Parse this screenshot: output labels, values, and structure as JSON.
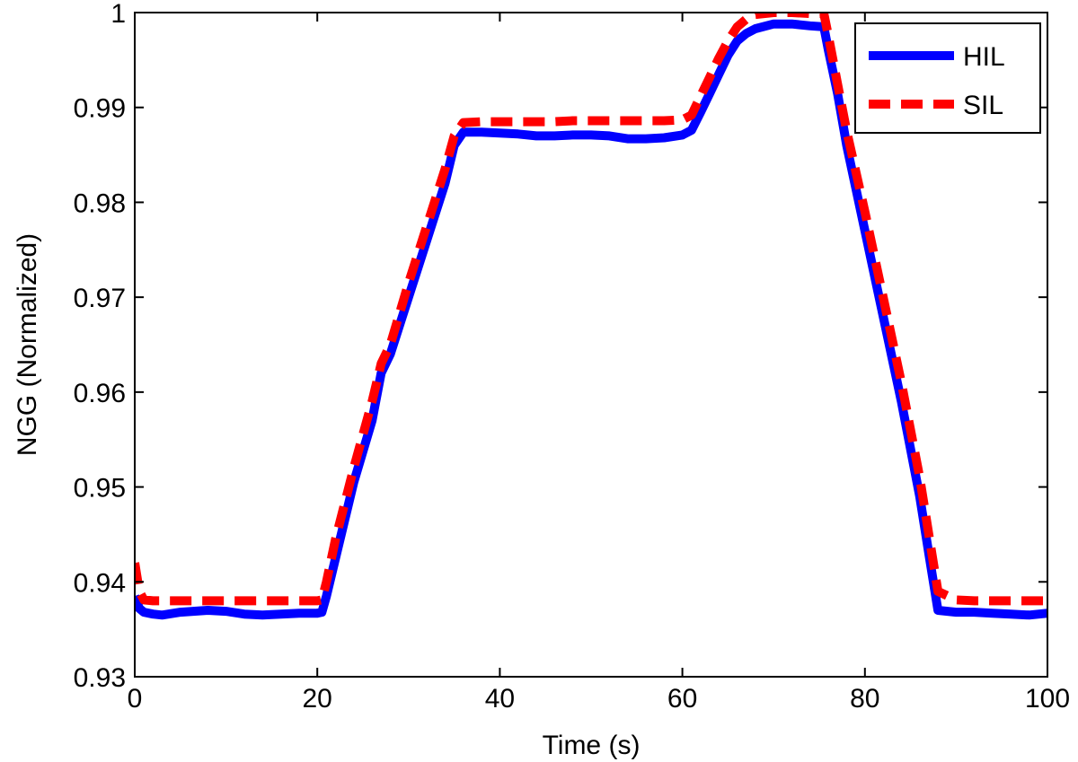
{
  "chart_data": {
    "type": "line",
    "title": "",
    "xlabel": "Time (s)",
    "ylabel": "NGG (Normalized)",
    "xlim": [
      0,
      100
    ],
    "ylim": [
      0.93,
      1.0
    ],
    "xticks": [
      0,
      20,
      40,
      60,
      80,
      100
    ],
    "xtick_labels": [
      "0",
      "20",
      "40",
      "60",
      "80",
      "100"
    ],
    "yticks": [
      0.93,
      0.94,
      0.95,
      0.96,
      0.97,
      0.98,
      0.99,
      1.0
    ],
    "ytick_labels": [
      "0.93",
      "0.94",
      "0.95",
      "0.96",
      "0.97",
      "0.98",
      "0.99",
      "1"
    ],
    "grid": false,
    "legend_position": "top-right",
    "series": [
      {
        "name": "HIL",
        "color": "#0000ff",
        "style": "solid",
        "x": [
          0,
          0.5,
          1,
          2,
          3,
          5,
          8,
          10,
          12,
          14,
          16,
          18,
          20,
          20.5,
          21,
          22,
          24,
          26,
          27,
          28,
          30,
          32,
          34,
          35,
          36,
          38,
          40,
          42,
          44,
          46,
          48,
          50,
          52,
          54,
          56,
          58,
          60,
          61,
          62,
          63,
          64,
          65,
          66,
          67,
          68,
          70,
          72,
          74,
          75.5,
          76,
          77,
          78,
          80,
          82,
          84,
          86,
          87,
          88,
          90,
          92,
          94,
          96,
          98,
          100
        ],
        "y": [
          0.9385,
          0.9372,
          0.9368,
          0.9366,
          0.9365,
          0.9368,
          0.937,
          0.9369,
          0.9366,
          0.9365,
          0.9366,
          0.9367,
          0.9367,
          0.9368,
          0.9385,
          0.9425,
          0.9505,
          0.957,
          0.962,
          0.964,
          0.97,
          0.976,
          0.982,
          0.986,
          0.9874,
          0.9874,
          0.9873,
          0.9872,
          0.987,
          0.987,
          0.9871,
          0.9871,
          0.987,
          0.9867,
          0.9867,
          0.9868,
          0.9871,
          0.9876,
          0.9895,
          0.9915,
          0.9935,
          0.9955,
          0.997,
          0.9978,
          0.9983,
          0.9988,
          0.9988,
          0.9986,
          0.9985,
          0.996,
          0.9915,
          0.986,
          0.977,
          0.968,
          0.959,
          0.949,
          0.943,
          0.937,
          0.9368,
          0.9368,
          0.9367,
          0.9366,
          0.9365,
          0.9367
        ]
      },
      {
        "name": "SIL",
        "color": "#ff0000",
        "style": "dashed",
        "x": [
          0,
          0.5,
          1,
          2,
          4,
          6,
          8,
          10,
          12,
          14,
          16,
          18,
          20,
          20.5,
          21,
          22,
          24,
          26,
          27,
          28,
          30,
          32,
          34,
          35,
          36,
          38,
          40,
          42,
          44,
          46,
          48,
          50,
          52,
          54,
          56,
          58,
          60,
          61,
          62,
          63,
          64,
          65,
          66,
          67,
          68,
          70,
          72,
          74,
          75.5,
          76,
          77,
          78,
          80,
          82,
          84,
          86,
          87,
          88,
          90,
          92,
          94,
          96,
          98,
          100
        ],
        "y": [
          0.942,
          0.939,
          0.9381,
          0.938,
          0.938,
          0.938,
          0.938,
          0.938,
          0.938,
          0.938,
          0.938,
          0.938,
          0.938,
          0.9381,
          0.94,
          0.9445,
          0.952,
          0.959,
          0.963,
          0.965,
          0.9715,
          0.9775,
          0.9835,
          0.987,
          0.9884,
          0.9885,
          0.9885,
          0.9885,
          0.9885,
          0.9885,
          0.9886,
          0.9886,
          0.9886,
          0.9886,
          0.9886,
          0.9886,
          0.9887,
          0.9892,
          0.9912,
          0.9932,
          0.9952,
          0.997,
          0.9985,
          0.9993,
          0.9998,
          1.0,
          1.0,
          0.9999,
          0.9999,
          0.9975,
          0.9925,
          0.9875,
          0.979,
          0.97,
          0.961,
          0.951,
          0.945,
          0.939,
          0.9381,
          0.938,
          0.938,
          0.938,
          0.938,
          0.938
        ]
      }
    ]
  }
}
